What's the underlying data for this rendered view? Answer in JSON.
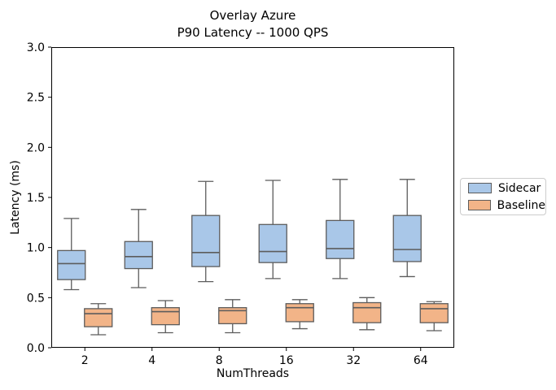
{
  "chart_data": {
    "type": "boxplot",
    "title_lines": [
      "Overlay Azure",
      "P90 Latency -- 1000 QPS"
    ],
    "xlabel": "NumThreads",
    "ylabel": "Latency (ms)",
    "ylim": [
      0.0,
      3.0
    ],
    "yticks": [
      0.0,
      0.5,
      1.0,
      1.5,
      2.0,
      2.5,
      3.0
    ],
    "ytick_labels": [
      "0.0",
      "0.5",
      "1.0",
      "1.5",
      "2.0",
      "2.5",
      "3.0"
    ],
    "categories": [
      "2",
      "4",
      "8",
      "16",
      "32",
      "64"
    ],
    "grid": false,
    "legend_position": "center right outside",
    "axis_color": "#000000",
    "box_edge_color": "#5c5c5c",
    "series": [
      {
        "name": "Sidecar",
        "color": "#a9c7e8",
        "boxes": [
          {
            "whislo": 0.58,
            "q1": 0.68,
            "med": 0.84,
            "q3": 0.97,
            "whishi": 1.29
          },
          {
            "whislo": 0.6,
            "q1": 0.79,
            "med": 0.91,
            "q3": 1.06,
            "whishi": 1.38
          },
          {
            "whislo": 0.66,
            "q1": 0.81,
            "med": 0.95,
            "q3": 1.32,
            "whishi": 1.66
          },
          {
            "whislo": 0.69,
            "q1": 0.85,
            "med": 0.96,
            "q3": 1.23,
            "whishi": 1.67
          },
          {
            "whislo": 0.69,
            "q1": 0.89,
            "med": 0.99,
            "q3": 1.27,
            "whishi": 1.68
          },
          {
            "whislo": 0.71,
            "q1": 0.86,
            "med": 0.98,
            "q3": 1.32,
            "whishi": 1.68
          }
        ]
      },
      {
        "name": "Baseline",
        "color": "#f2b488",
        "boxes": [
          {
            "whislo": 0.13,
            "q1": 0.21,
            "med": 0.34,
            "q3": 0.39,
            "whishi": 0.44
          },
          {
            "whislo": 0.15,
            "q1": 0.23,
            "med": 0.36,
            "q3": 0.4,
            "whishi": 0.47
          },
          {
            "whislo": 0.15,
            "q1": 0.24,
            "med": 0.37,
            "q3": 0.4,
            "whishi": 0.48
          },
          {
            "whislo": 0.19,
            "q1": 0.26,
            "med": 0.4,
            "q3": 0.44,
            "whishi": 0.48
          },
          {
            "whislo": 0.18,
            "q1": 0.25,
            "med": 0.4,
            "q3": 0.45,
            "whishi": 0.5
          },
          {
            "whislo": 0.17,
            "q1": 0.25,
            "med": 0.39,
            "q3": 0.44,
            "whishi": 0.46
          }
        ]
      }
    ]
  }
}
